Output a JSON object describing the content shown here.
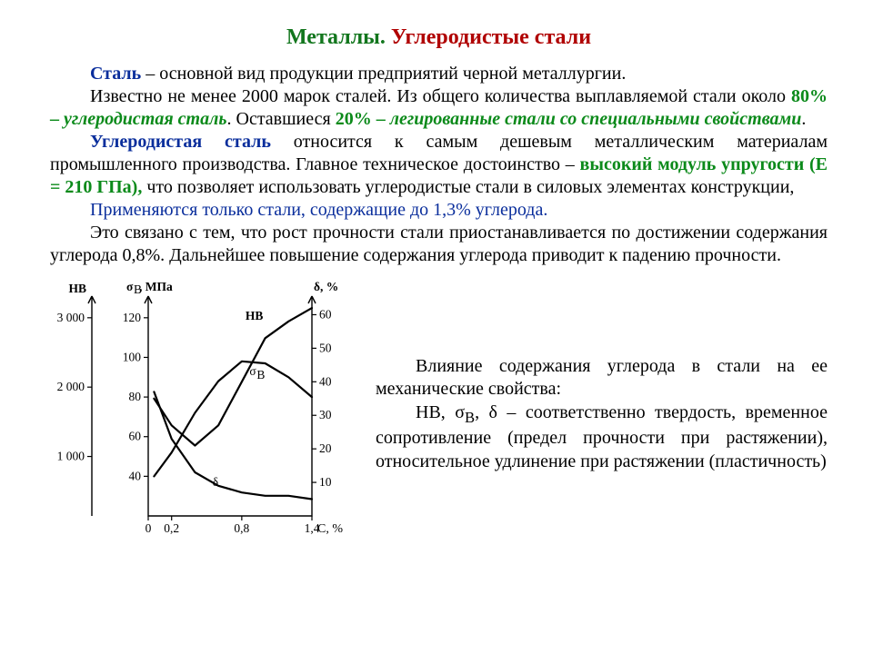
{
  "title": {
    "t1": "Металлы.",
    "t2": "Углеродистые стали"
  },
  "p1": {
    "lead": "Сталь",
    "rest": " – основной вид продукции предприятий черной металлургии."
  },
  "p2": {
    "a": "Известно не менее 2000 марок сталей. Из общего количества выплавляемой стали около ",
    "b": "80% – ",
    "c": "углеродистая сталь",
    "d": ". Оставшиеся ",
    "e": "20% – ",
    "f": "легированные стали со специальными свойствами",
    "g": "."
  },
  "p3": {
    "lead": "Углеродистая сталь",
    "a": " относится к самым дешевым металлическим материалам промышленного производства. Главное техническое достоинство – ",
    "b": "высокий модуль упругости (Е = 210 ГПа),",
    "c": " что позволяет использовать углеродистые стали в силовых элементах конструкции,"
  },
  "p4": "Применяются только стали, содержащие до 1,3% углерода.",
  "p5": "Это связано с тем, что рост прочности стали приостанавливается по достижении содержания углерода 0,8%. Дальнейшее повышение содержания углерода приводит к падению прочности.",
  "caption": {
    "l1": "Влияние содержания углерода в стали на ее механические свойства:",
    "l2a": "НВ, σ",
    "l2b": "В",
    "l2ca": ", δ",
    "l2c": " – соответственно твердость, временное сопротивление (предел прочности при растяжении), относительное удлинение при растяжении (пластичность)"
  },
  "chart": {
    "type": "line",
    "background_color": "#ffffff",
    "axis_color": "#000000",
    "curve_color": "#000000",
    "line_width": 2.2,
    "xlabel": "C, %",
    "xlim": [
      0,
      1.4
    ],
    "xticks": [
      0,
      0.2,
      0.8,
      1.4
    ],
    "xtick_labels": [
      "0",
      "0,2",
      "0,8",
      "1,4"
    ],
    "y_left_outer": {
      "label": "НВ",
      "ticks": [
        1000,
        2000,
        3000
      ],
      "labels": [
        "1 000",
        "2 000",
        "3 000"
      ]
    },
    "y_left_inner": {
      "label": "σ_B, МПа",
      "ticks": [
        40,
        60,
        80,
        100,
        120
      ]
    },
    "y_right": {
      "label": "δ, %",
      "ticks": [
        10,
        20,
        30,
        40,
        50,
        60
      ]
    },
    "series": {
      "HB": {
        "label_pos": [
          0.8,
          58
        ],
        "x": [
          0.05,
          0.2,
          0.4,
          0.6,
          0.8,
          1.0,
          1.2,
          1.4
        ],
        "y_delta": [
          35,
          27,
          21,
          27,
          40,
          53,
          58,
          62
        ]
      },
      "sigma": {
        "label": "σ_B",
        "label_pos": [
          0.82,
          43
        ],
        "x": [
          0.05,
          0.2,
          0.4,
          0.6,
          0.8,
          1.0,
          1.2,
          1.4
        ],
        "y_sigma": [
          40,
          52,
          72,
          88,
          98,
          97,
          90,
          80
        ]
      },
      "delta": {
        "label": "δ",
        "label_pos": [
          0.55,
          10
        ],
        "x": [
          0.05,
          0.2,
          0.4,
          0.6,
          0.8,
          1.0,
          1.2,
          1.4
        ],
        "y_delta": [
          37,
          23,
          13,
          9,
          7,
          6,
          6,
          5
        ]
      }
    }
  }
}
